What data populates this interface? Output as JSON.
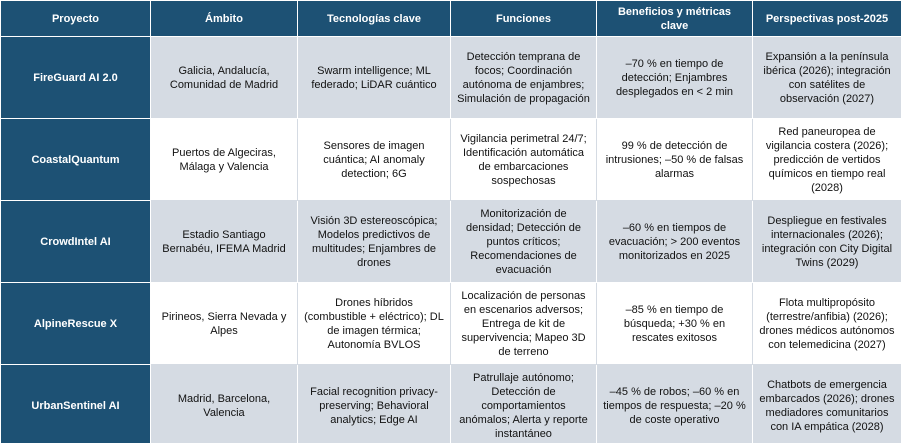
{
  "table": {
    "header": [
      "Proyecto",
      "Ámbito",
      "Tecnologías clave",
      "Funciones",
      "Beneficios y métricas clave",
      "Perspectivas post-2025"
    ],
    "rows": [
      [
        "FireGuard AI 2.0",
        "Galicia, Andalucía, Comunidad de Madrid",
        "Swarm intelligence; ML federado; LiDAR cuántico",
        "Detección temprana de focos; Coordinación autónoma de enjambres; Simulación de propagación",
        "–70 % en tiempo de detección; Enjambres desplegados en < 2 min",
        "Expansión a la península ibérica (2026); integración con satélites de observación (2027)"
      ],
      [
        "CoastalQuantum",
        "Puertos de Algeciras, Málaga y Valencia",
        "Sensores de imagen cuántica; AI anomaly detection; 6G",
        "Vigilancia perimetral 24/7; Identificación automática de embarcaciones sospechosas",
        "99 % de detección de intrusiones; –50 % de falsas alarmas",
        "Red paneuropea de vigilancia costera (2026); predicción de vertidos químicos en tiempo real (2028)"
      ],
      [
        "CrowdIntel AI",
        "Estadio Santiago Bernabéu, IFEMA Madrid",
        "Visión 3D estereoscópica; Modelos predictivos de multitudes; Enjambres de drones",
        "Monitorización de densidad; Detección de puntos críticos; Recomendaciones de evacuación",
        "–60 % en tiempos de evacuación; > 200 eventos monitorizados en 2025",
        "Despliegue en festivales internacionales (2026); integración con City Digital Twins (2029)"
      ],
      [
        "AlpineRescue X",
        "Pirineos, Sierra Nevada y Alpes",
        "Drones híbridos (combustible + eléctrico); DL de imagen térmica; Autonomía BVLOS",
        "Localización de personas en escenarios adversos; Entrega de kit de supervivencia; Mapeo 3D de terreno",
        "–85 % en tiempo de búsqueda; +30 % en rescates exitosos",
        "Flota multipropósito (terrestre/anfibia) (2026); drones médicos autónomos con telemedicina (2027)"
      ],
      [
        "UrbanSentinel AI",
        "Madrid, Barcelona, Valencia",
        "Facial recognition privacy-preserving; Behavioral analytics; Edge AI",
        "Patrullaje autónomo; Detección de comportamientos anómalos; Alerta y reporte instantáneo",
        "–45 % de robos; –60 % en tiempos de respuesta; –20 % de coste operativo",
        "Chatbots de emergencia embarcados (2026); drones mediadores comunitarios con IA empática (2028)"
      ]
    ]
  }
}
